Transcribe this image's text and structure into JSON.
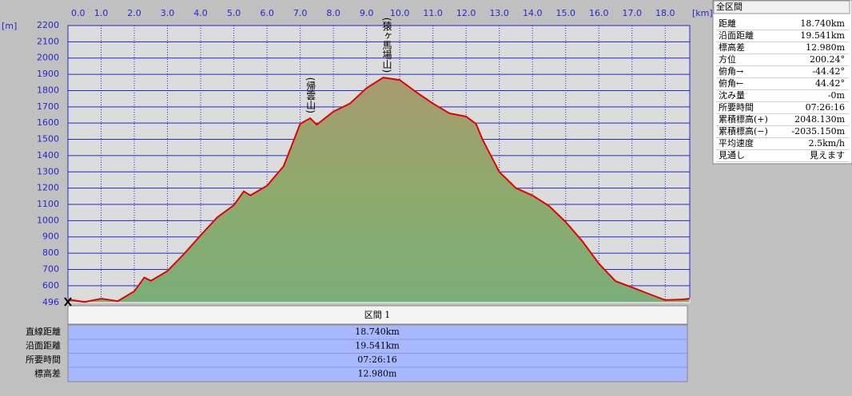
{
  "chart_data": {
    "type": "line",
    "x_unit": "[km]",
    "y_unit": "[m]",
    "x": [
      0,
      0.5,
      1.0,
      1.5,
      2.0,
      2.3,
      2.5,
      3.0,
      3.5,
      4.0,
      4.5,
      5.0,
      5.3,
      5.5,
      6.0,
      6.5,
      7.0,
      7.3,
      7.5,
      8.0,
      8.5,
      9.0,
      9.5,
      10.0,
      10.5,
      11.0,
      11.5,
      12.0,
      12.3,
      12.5,
      13.0,
      13.5,
      14.0,
      14.5,
      15.0,
      15.5,
      16.0,
      16.5,
      17.0,
      17.5,
      18.0,
      18.5,
      18.74
    ],
    "series": [
      {
        "color": "#e00000",
        "values": [
          515,
          500,
          520,
          505,
          565,
          650,
          630,
          690,
          795,
          910,
          1020,
          1095,
          1180,
          1155,
          1215,
          1335,
          1595,
          1630,
          1590,
          1670,
          1720,
          1815,
          1880,
          1865,
          1790,
          1720,
          1660,
          1640,
          1595,
          1497,
          1300,
          1200,
          1155,
          1090,
          992,
          874,
          736,
          628,
          590,
          550,
          511,
          515,
          520
        ]
      }
    ],
    "xlim": [
      0,
      18.74
    ],
    "xticks": [
      {
        "value": 0,
        "label": "0.0"
      },
      {
        "value": 1,
        "label": "1.0"
      },
      {
        "value": 2,
        "label": "2.0"
      },
      {
        "value": 3,
        "label": "3.0"
      },
      {
        "value": 4,
        "label": "4.0"
      },
      {
        "value": 5,
        "label": "5.0"
      },
      {
        "value": 6,
        "label": "6.0"
      },
      {
        "value": 7,
        "label": "7.0"
      },
      {
        "value": 8,
        "label": "8.0"
      },
      {
        "value": 9,
        "label": "9.0"
      },
      {
        "value": 10,
        "label": "10.0"
      },
      {
        "value": 11,
        "label": "11.0"
      },
      {
        "value": 12,
        "label": "12.0"
      },
      {
        "value": 13,
        "label": "13.0"
      },
      {
        "value": 14,
        "label": "14.0"
      },
      {
        "value": 15,
        "label": "15.0"
      },
      {
        "value": 16,
        "label": "16.0"
      },
      {
        "value": 17,
        "label": "17.0"
      },
      {
        "value": 18,
        "label": "18.0"
      }
    ],
    "ylim": [
      496,
      2200
    ],
    "yticks": [
      496,
      600,
      700,
      800,
      900,
      1000,
      1100,
      1200,
      1300,
      1400,
      1500,
      1600,
      1700,
      1800,
      1900,
      2000,
      2100,
      2200
    ],
    "grid": true,
    "annotations": [
      {
        "text": "(帰雲山)",
        "x": 7.3,
        "y": 1630
      },
      {
        "text": "(猿ヶ馬場山)",
        "x": 9.6,
        "y": 1880
      }
    ]
  },
  "summary": {
    "title": "全区間",
    "rows": [
      [
        "距離",
        "18.740km"
      ],
      [
        "沿面距離",
        "19.541km"
      ],
      [
        "標高差",
        "12.980m"
      ],
      [
        "方位",
        "200.24°"
      ],
      [
        "俯角→",
        "-44.42°"
      ],
      [
        "俯角←",
        "44.42°"
      ],
      [
        "沈み量",
        "-0m"
      ],
      [
        "所要時間",
        "07:26:16"
      ],
      [
        "累積標高(+)",
        "2048.130m"
      ],
      [
        "累積標高(−)",
        "-2035.150m"
      ],
      [
        "平均速度",
        "2.5km/h"
      ],
      [
        "見通し",
        "見えます"
      ]
    ]
  },
  "section": {
    "title": "区間 1",
    "rows": [
      [
        "直線距離",
        "18.740km"
      ],
      [
        "沿面距離",
        "19.541km"
      ],
      [
        "所要時間",
        "07:26:16"
      ],
      [
        "標高差",
        "12.980m"
      ]
    ]
  }
}
